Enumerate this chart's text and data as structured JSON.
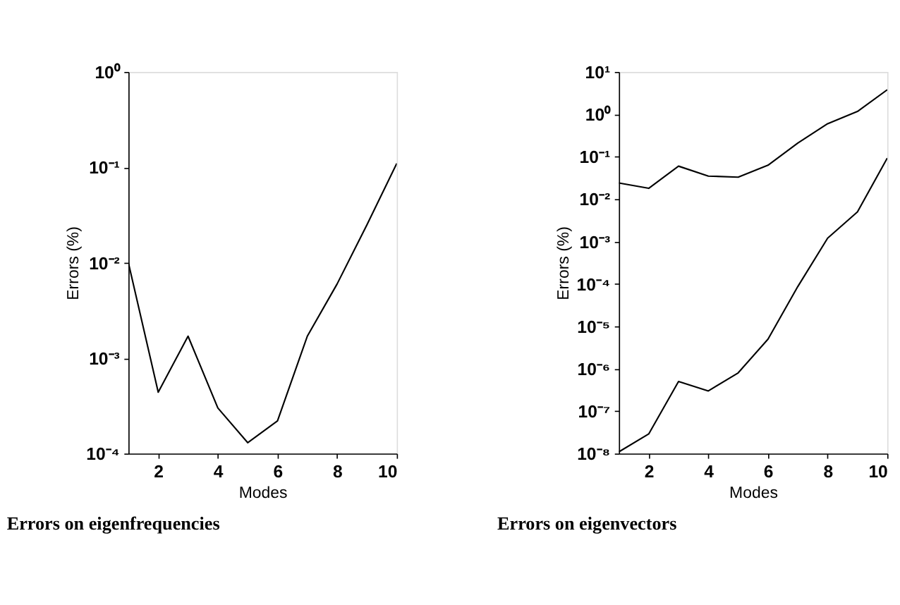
{
  "chart_data": [
    {
      "type": "line",
      "title": "Errors on eigenfrequencies",
      "xlabel": "Modes",
      "ylabel": "Errors (%)",
      "log": "y",
      "grid": false,
      "x": [
        1,
        2,
        3,
        4,
        5,
        6,
        7,
        8,
        9,
        10
      ],
      "xlim": [
        1,
        10
      ],
      "xticks": [
        2,
        4,
        6,
        8,
        10
      ],
      "ylim": [
        0.0001,
        1
      ],
      "yticks": [
        {
          "value": 0.0001,
          "label": "10⁻⁴"
        },
        {
          "value": 0.001,
          "label": "10⁻³"
        },
        {
          "value": 0.01,
          "label": "10⁻²"
        },
        {
          "value": 0.1,
          "label": "10⁻¹"
        },
        {
          "value": 1,
          "label": "10⁰"
        }
      ],
      "series": [
        {
          "color": "#000000",
          "values": [
            0.01,
            0.00044,
            0.0017,
            0.0003,
            0.00013,
            0.00022,
            0.0017,
            0.006,
            0.025,
            0.11
          ]
        }
      ]
    },
    {
      "type": "line",
      "title": "Errors on eigenvectors",
      "xlabel": "Modes",
      "ylabel": "Errors (%)",
      "log": "y",
      "grid": false,
      "x": [
        1,
        2,
        3,
        4,
        5,
        6,
        7,
        8,
        9,
        10
      ],
      "xlim": [
        1,
        10
      ],
      "xticks": [
        2,
        4,
        6,
        8,
        10
      ],
      "ylim": [
        1e-08,
        10
      ],
      "yticks": [
        {
          "value": 1e-08,
          "label": "10⁻⁸"
        },
        {
          "value": 1e-07,
          "label": "10⁻⁷"
        },
        {
          "value": 1e-06,
          "label": "10⁻⁶"
        },
        {
          "value": 1e-05,
          "label": "10⁻⁵"
        },
        {
          "value": 0.0001,
          "label": "10⁻⁴"
        },
        {
          "value": 0.001,
          "label": "10⁻³"
        },
        {
          "value": 0.01,
          "label": "10⁻²"
        },
        {
          "value": 0.1,
          "label": "10⁻¹"
        },
        {
          "value": 1,
          "label": "10⁰"
        },
        {
          "value": 10,
          "label": "10¹"
        }
      ],
      "series": [
        {
          "color": "#000000",
          "values": [
            0.024,
            0.018,
            0.06,
            0.035,
            0.033,
            0.063,
            0.21,
            0.6,
            1.17,
            3.8
          ]
        },
        {
          "color": "#000000",
          "values": [
            1.1e-08,
            2.9e-08,
            5e-07,
            3e-07,
            8e-07,
            5e-06,
            8.7e-05,
            0.0012,
            0.005,
            0.093
          ]
        }
      ]
    }
  ]
}
